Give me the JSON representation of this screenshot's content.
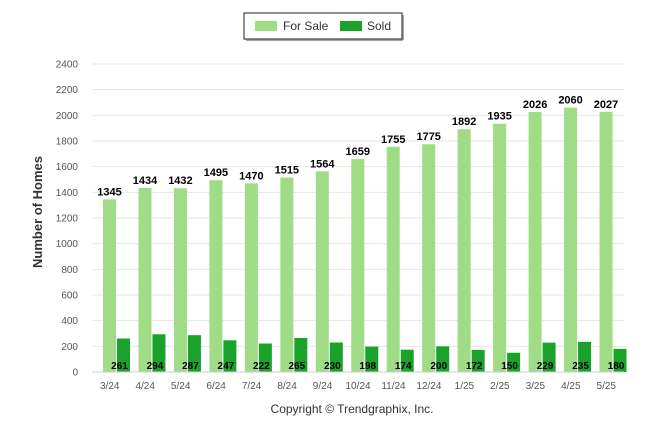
{
  "chart_data": {
    "type": "bar",
    "categories": [
      "3/24",
      "4/24",
      "5/24",
      "6/24",
      "7/24",
      "8/24",
      "9/24",
      "10/24",
      "11/24",
      "12/24",
      "1/25",
      "2/25",
      "3/25",
      "4/25",
      "5/25"
    ],
    "series": [
      {
        "name": "For Sale",
        "color": "#9fdc85",
        "values": [
          1345,
          1434,
          1432,
          1495,
          1470,
          1515,
          1564,
          1659,
          1755,
          1775,
          1892,
          1935,
          2026,
          2060,
          2027
        ]
      },
      {
        "name": "Sold",
        "color": "#1aa32a",
        "values": [
          261,
          294,
          287,
          247,
          222,
          265,
          230,
          198,
          174,
          200,
          172,
          150,
          229,
          235,
          180
        ]
      }
    ],
    "ylabel": "Number of Homes",
    "xlabel": "",
    "ylim": [
      0,
      2400
    ],
    "yticks": [
      0,
      200,
      400,
      600,
      800,
      1000,
      1200,
      1400,
      1600,
      1800,
      2000,
      2200,
      2400
    ],
    "grid": true,
    "legend_position": "top-center"
  },
  "copyright": "Copyright © Trendgraphix, Inc."
}
